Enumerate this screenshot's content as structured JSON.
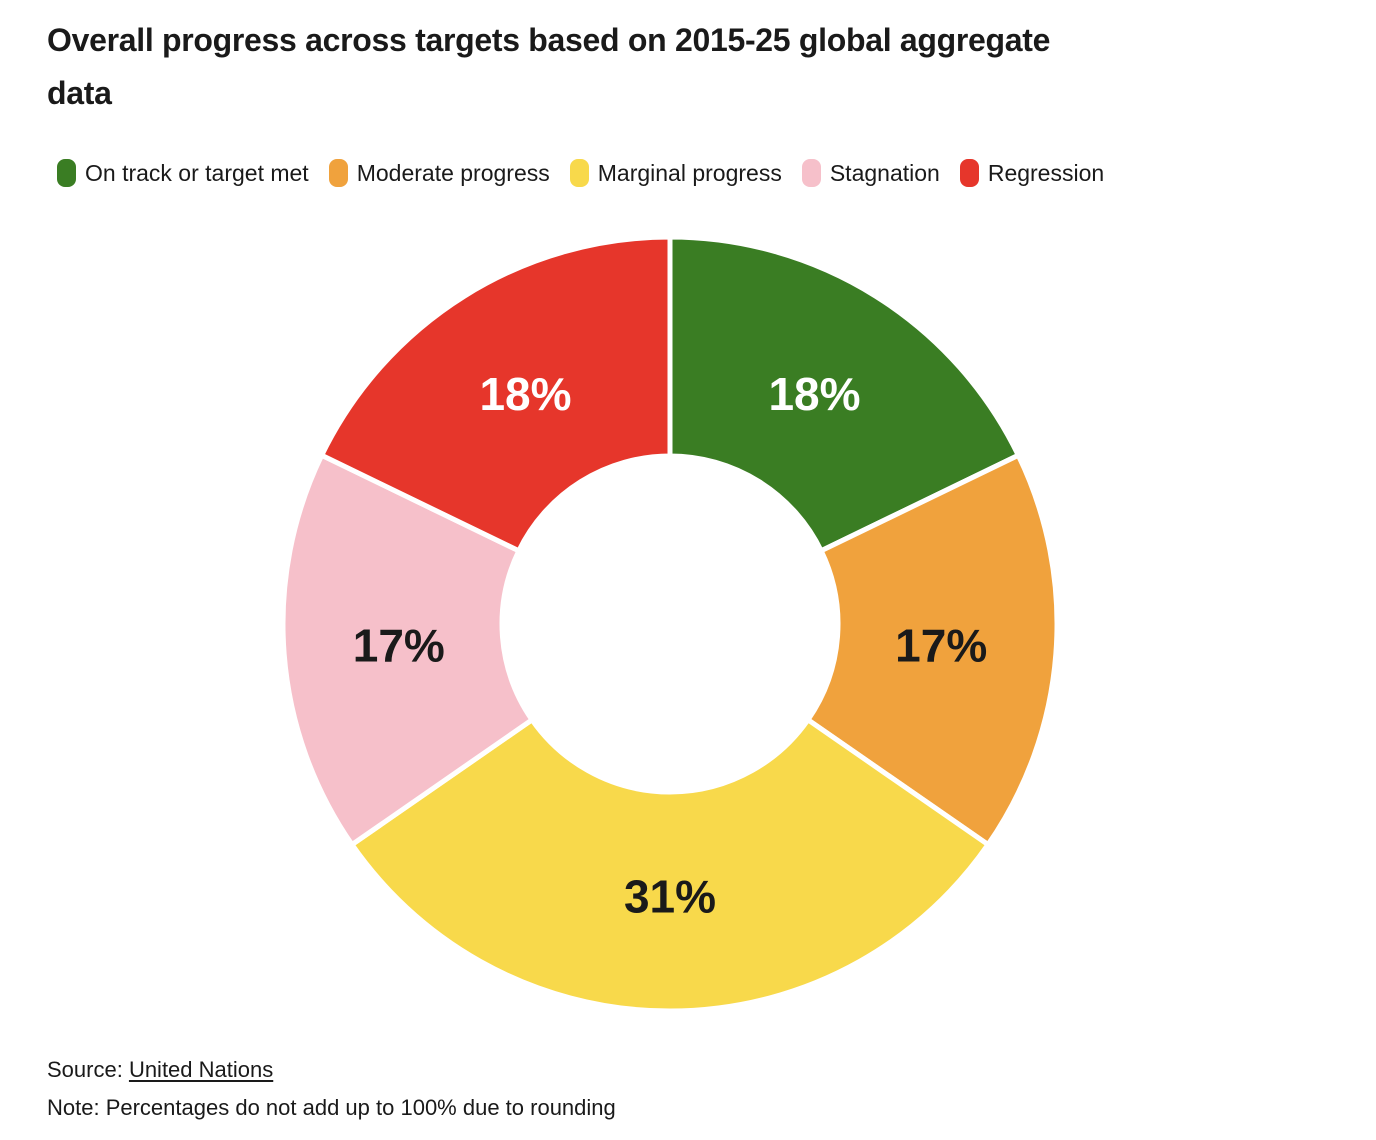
{
  "header": {
    "title": "Overall progress across targets based on 2015-25 global aggregate data"
  },
  "chart_data": {
    "type": "pie",
    "subtype": "donut",
    "title": "Overall progress across targets based on 2015-25 global aggregate data",
    "categories": [
      "On track or target met",
      "Moderate progress",
      "Marginal progress",
      "Stagnation",
      "Regression"
    ],
    "values": [
      18,
      17,
      31,
      17,
      18
    ],
    "unit": "%",
    "segments": [
      {
        "label": "On track or target met",
        "value": 18,
        "display": "18%",
        "color": "#3a7d23",
        "text_color": "#ffffff"
      },
      {
        "label": "Moderate progress",
        "value": 17,
        "display": "17%",
        "color": "#f0a23d",
        "text_color": "#1a1a1a"
      },
      {
        "label": "Marginal progress",
        "value": 31,
        "display": "31%",
        "color": "#f8d94b",
        "text_color": "#1a1a1a"
      },
      {
        "label": "Stagnation",
        "value": 17,
        "display": "17%",
        "color": "#f6c0ca",
        "text_color": "#1a1a1a"
      },
      {
        "label": "Regression",
        "value": 18,
        "display": "18%",
        "color": "#e6362b",
        "text_color": "#ffffff"
      }
    ],
    "layout": {
      "legend_position": "top",
      "start_angle_deg": 0,
      "direction": "clockwise",
      "inner_radius_ratio": 0.43,
      "separator_color": "#ffffff"
    }
  },
  "footer": {
    "source_prefix": "Source: ",
    "source_link": "United Nations",
    "note": "Note: Percentages do not add up to 100% due to rounding"
  }
}
